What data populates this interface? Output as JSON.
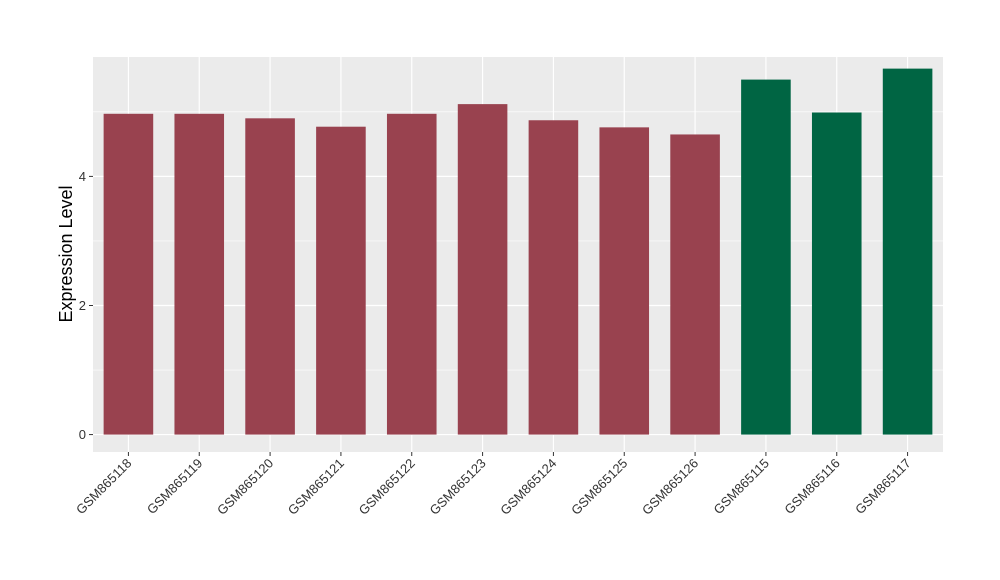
{
  "chart_data": {
    "type": "bar",
    "title": "",
    "xlabel": "",
    "ylabel": "Expression Level",
    "ylim": [
      -0.27,
      5.85
    ],
    "yticks": [
      0,
      2,
      4
    ],
    "grid": true,
    "legend": "none",
    "categories": [
      "GSM865118",
      "GSM865119",
      "GSM865120",
      "GSM865121",
      "GSM865122",
      "GSM865123",
      "GSM865124",
      "GSM865125",
      "GSM865126",
      "GSM865115",
      "GSM865116",
      "GSM865117"
    ],
    "values": [
      4.97,
      4.97,
      4.9,
      4.77,
      4.97,
      5.12,
      4.87,
      4.76,
      4.65,
      5.5,
      4.99,
      5.67
    ],
    "colors": [
      "#99424f",
      "#99424f",
      "#99424f",
      "#99424f",
      "#99424f",
      "#99424f",
      "#99424f",
      "#99424f",
      "#99424f",
      "#006543",
      "#006543",
      "#006543"
    ],
    "panel_color": "#ebebeb",
    "grid_color": "#ffffff"
  }
}
